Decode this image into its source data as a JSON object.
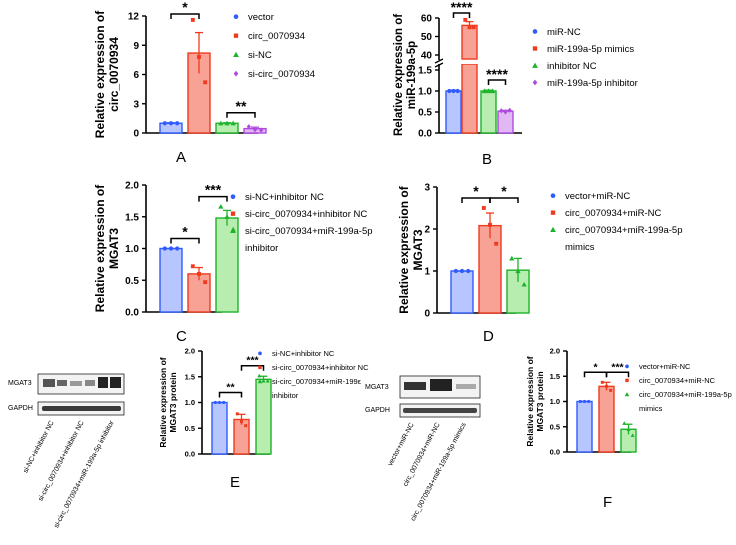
{
  "chart_data": [
    {
      "id": "A",
      "type": "bar",
      "panel_label": "A",
      "ylabel": "Relative expression of circ_0070934",
      "ylim": [
        0,
        12
      ],
      "yticks": [
        "0",
        "3",
        "6",
        "9",
        "12"
      ],
      "series": [
        {
          "name": "vector",
          "value": 1.0,
          "error": 0.05,
          "points": [
            1.0,
            1.0,
            1.0
          ],
          "color": "#2f5bff",
          "fill": "#b7c6ff",
          "marker": "circle"
        },
        {
          "name": "circ_0070934",
          "value": 8.2,
          "error": 2.1,
          "points": [
            11.6,
            7.8,
            5.2
          ],
          "color": "#f03a1e",
          "fill": "#f7a294",
          "marker": "square"
        },
        {
          "name": "si-NC",
          "value": 1.0,
          "error": 0.05,
          "points": [
            1.0,
            1.0,
            1.0
          ],
          "color": "#1db32a",
          "fill": "#b7edaf",
          "marker": "triangle"
        },
        {
          "name": "si-circ_0070934",
          "value": 0.45,
          "error": 0.15,
          "points": [
            0.65,
            0.35,
            0.3
          ],
          "color": "#b04be0",
          "fill": "#e1b7f4",
          "marker": "diamond"
        }
      ],
      "significance": [
        {
          "from": 0,
          "to": 1,
          "label": "*"
        },
        {
          "from": 2,
          "to": 3,
          "label": "**"
        }
      ]
    },
    {
      "id": "B",
      "type": "bar",
      "panel_label": "B",
      "ylabel": "Relative expression of miR-199a-5p",
      "broken_axis": true,
      "yticks_lower": [
        "0.0",
        "0.5",
        "1.0",
        "1.5"
      ],
      "yticks_upper": [
        "40",
        "50",
        "60"
      ],
      "series": [
        {
          "name": "miR-NC",
          "value": 1.0,
          "error": 0.02,
          "points": [
            1.0,
            1.0,
            1.0
          ],
          "color": "#2f5bff",
          "fill": "#b7c6ff",
          "marker": "circle"
        },
        {
          "name": "miR-199a-5p mimics",
          "value": 56,
          "error": 2,
          "points": [
            59,
            55,
            55
          ],
          "color": "#f03a1e",
          "fill": "#f7a294",
          "marker": "square"
        },
        {
          "name": "inhibitor NC",
          "value": 1.0,
          "error": 0.02,
          "points": [
            1.0,
            1.0,
            1.0
          ],
          "color": "#1db32a",
          "fill": "#b7edaf",
          "marker": "triangle"
        },
        {
          "name": "miR-199a-5p inhibitor",
          "value": 0.52,
          "error": 0.02,
          "points": [
            0.53,
            0.5,
            0.54
          ],
          "color": "#b04be0",
          "fill": "#e1b7f4",
          "marker": "diamond"
        }
      ],
      "significance": [
        {
          "from": 0,
          "to": 1,
          "label": "****"
        },
        {
          "from": 2,
          "to": 3,
          "label": "****"
        }
      ]
    },
    {
      "id": "C",
      "type": "bar",
      "panel_label": "C",
      "ylabel": "Relative expression of MGAT3",
      "ylim": [
        0,
        2.0
      ],
      "yticks": [
        "0.0",
        "0.5",
        "1.0",
        "1.5",
        "2.0"
      ],
      "series": [
        {
          "name": "si-NC+inhibitor NC",
          "value": 1.0,
          "error": 0.0,
          "points": [
            1.0,
            1.0,
            1.0
          ],
          "color": "#2f5bff",
          "fill": "#b7c6ff",
          "marker": "circle"
        },
        {
          "name": "si-circ_0070934+inhibitor NC",
          "value": 0.6,
          "error": 0.1,
          "points": [
            0.72,
            0.6,
            0.47
          ],
          "color": "#f03a1e",
          "fill": "#f7a294",
          "marker": "square"
        },
        {
          "name": "si-circ_0070934+miR-199a-5p inhibitor",
          "value": 1.48,
          "error": 0.12,
          "points": [
            1.66,
            1.5,
            1.3
          ],
          "color": "#1db32a",
          "fill": "#b7edaf",
          "marker": "triangle"
        }
      ],
      "significance": [
        {
          "from": 0,
          "to": 1,
          "label": "*"
        },
        {
          "from": 1,
          "to": 2,
          "label": "***"
        }
      ]
    },
    {
      "id": "D",
      "type": "bar",
      "panel_label": "D",
      "ylabel": "Relative expression of MGAT3",
      "ylim": [
        0,
        3
      ],
      "yticks": [
        "0",
        "1",
        "2",
        "3"
      ],
      "series": [
        {
          "name": "vector+miR-NC",
          "value": 1.0,
          "error": 0.0,
          "points": [
            1.0,
            1.0,
            1.0
          ],
          "color": "#2f5bff",
          "fill": "#b7c6ff",
          "marker": "circle"
        },
        {
          "name": "circ_0070934+miR-NC",
          "value": 2.08,
          "error": 0.3,
          "points": [
            2.5,
            2.1,
            1.65
          ],
          "color": "#f03a1e",
          "fill": "#f7a294",
          "marker": "square"
        },
        {
          "name": "circ_0070934+miR-199a-5p mimics",
          "value": 1.02,
          "error": 0.28,
          "points": [
            1.3,
            1.0,
            0.68
          ],
          "color": "#1db32a",
          "fill": "#b7edaf",
          "marker": "triangle"
        }
      ],
      "significance": [
        {
          "from": 0,
          "to": 1,
          "label": "*"
        },
        {
          "from": 1,
          "to": 2,
          "label": "*"
        }
      ]
    },
    {
      "id": "E",
      "type": "bar",
      "panel_label": "E",
      "ylabel": "Relative expression of MGAT3 protein",
      "ylim": [
        0,
        2.0
      ],
      "yticks": [
        "0.0",
        "0.5",
        "1.0",
        "1.5",
        "2.0"
      ],
      "series": [
        {
          "name": "si-NC+inhibitor NC",
          "value": 1.0,
          "error": 0.0,
          "points": [
            1.0,
            1.0,
            1.0
          ],
          "color": "#2f5bff",
          "fill": "#b7c6ff",
          "marker": "circle"
        },
        {
          "name": "si-circ_0070934+inhibitor NC",
          "value": 0.67,
          "error": 0.1,
          "points": [
            0.78,
            0.63,
            0.55
          ],
          "color": "#f03a1e",
          "fill": "#f7a294",
          "marker": "square"
        },
        {
          "name": "si-circ_0070934+miR-199a-5p inhibitor",
          "value": 1.45,
          "error": 0.06,
          "points": [
            1.52,
            1.42,
            1.42
          ],
          "color": "#1db32a",
          "fill": "#b7edaf",
          "marker": "triangle"
        }
      ],
      "significance": [
        {
          "from": 0,
          "to": 1,
          "label": "**"
        },
        {
          "from": 1,
          "to": 2,
          "label": "***"
        }
      ]
    },
    {
      "id": "F",
      "type": "bar",
      "panel_label": "F",
      "ylabel": "Relative expression of MGAT3 protein",
      "ylim": [
        0,
        2.0
      ],
      "yticks": [
        "0.0",
        "0.5",
        "1.0",
        "1.5",
        "2.0"
      ],
      "series": [
        {
          "name": "vector+miR-NC",
          "value": 1.0,
          "error": 0.0,
          "points": [
            1.0,
            1.0,
            1.0
          ],
          "color": "#2f5bff",
          "fill": "#b7c6ff",
          "marker": "circle"
        },
        {
          "name": "circ_0070934+miR-NC",
          "value": 1.3,
          "error": 0.08,
          "points": [
            1.38,
            1.3,
            1.22
          ],
          "color": "#f03a1e",
          "fill": "#f7a294",
          "marker": "square"
        },
        {
          "name": "circ_0070934+miR-199a-5p mimics",
          "value": 0.45,
          "error": 0.1,
          "points": [
            0.57,
            0.45,
            0.33
          ],
          "color": "#1db32a",
          "fill": "#b7edaf",
          "marker": "triangle"
        }
      ],
      "significance": [
        {
          "from": 0,
          "to": 1,
          "label": "*"
        },
        {
          "from": 1,
          "to": 2,
          "label": "***"
        }
      ]
    }
  ],
  "legends": {
    "A": [
      "vector",
      "circ_0070934",
      "si-NC",
      "si-circ_0070934"
    ],
    "B": [
      "miR-NC",
      "miR-199a-5p mimics",
      "inhibitor NC",
      "miR-199a-5p inhibitor"
    ],
    "C": [
      "si-NC+inhibitor NC",
      "si-circ_0070934+inhibitor NC",
      "si-circ_0070934+miR-199a-5p",
      "inhibitor"
    ],
    "D": [
      "vector+miR-NC",
      "circ_0070934+miR-NC",
      "circ_0070934+miR-199a-5p",
      "mimics"
    ],
    "E": [
      "si-NC+inhibitor NC",
      "si-circ_0070934+inhibitor NC",
      "si-circ_0070934+miR-199ε",
      "inhibitor"
    ],
    "F": [
      "vector+miR-NC",
      "circ_0070934+miR-NC",
      "circ_0070934+miR-199a-5p",
      "mimics"
    ]
  },
  "western_blots": {
    "E": {
      "rows": [
        "MGAT3",
        "GAPDH"
      ],
      "lanes": [
        "si-NC+inhibitor NC",
        "si-circ_0070934+inhibitor NC",
        "si-circ_0070934+miR-199a-5p inhibitor"
      ]
    },
    "F": {
      "rows": [
        "MGAT3",
        "GAPDH"
      ],
      "lanes": [
        "vector+miR-NC",
        "circ_0070934+miR-NC",
        "circ_0070934+miR-199a-5p mimics"
      ]
    }
  }
}
